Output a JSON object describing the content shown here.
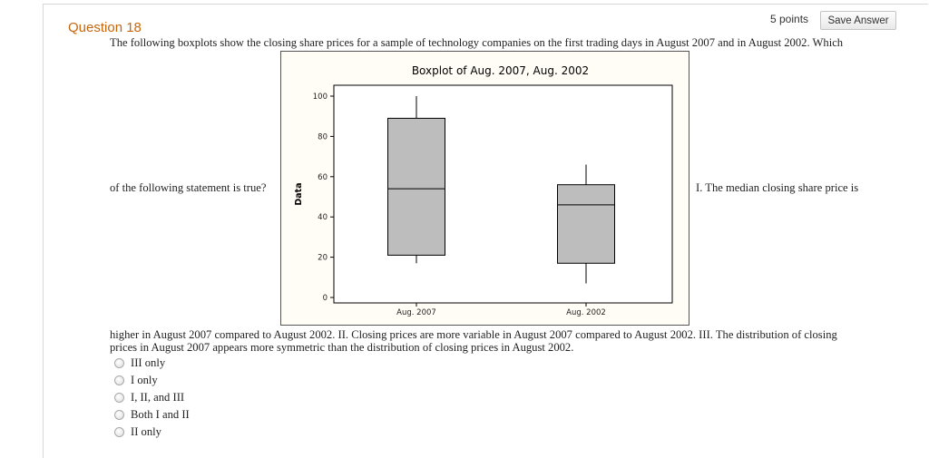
{
  "question": {
    "title": "Question 18",
    "points": "5 points",
    "save_label": "Save Answer",
    "line1": "The following boxplots show the closing share prices for a sample of technology companies on the first trading days in August 2007 and in August 2002. Which",
    "left_fragment": "of the following statement is true?",
    "right_fragment": "I. The median closing share price is",
    "line3": "higher in August 2007 compared to August 2002. II. Closing prices are more variable in August 2007 compared to August 2002. III. The distribution of closing",
    "line4": "prices in August 2007 appears more symmetric than the distribution of closing prices in August 2002."
  },
  "options": [
    {
      "label": "III only"
    },
    {
      "label": "I only"
    },
    {
      "label": "I, II, and III"
    },
    {
      "label": "Both I and II"
    },
    {
      "label": "II only"
    }
  ],
  "chart_data": {
    "type": "boxplot",
    "title": "Boxplot of Aug. 2007, Aug. 2002",
    "ylabel": "Data",
    "xlabel": "",
    "ylim": [
      0,
      100
    ],
    "yticks": [
      0,
      20,
      40,
      60,
      80,
      100
    ],
    "categories": [
      "Aug. 2007",
      "Aug. 2002"
    ],
    "boxes": [
      {
        "name": "Aug. 2007",
        "min": 17,
        "q1": 21,
        "median": 54,
        "q3": 89,
        "max": 100
      },
      {
        "name": "Aug. 2002",
        "min": 7,
        "q1": 17,
        "median": 46,
        "q3": 56,
        "max": 66
      }
    ],
    "box_fill": "#bdbdbd",
    "background": "#fffdf5"
  },
  "colors": {
    "accent": "#c8660a",
    "text": "#222222"
  }
}
